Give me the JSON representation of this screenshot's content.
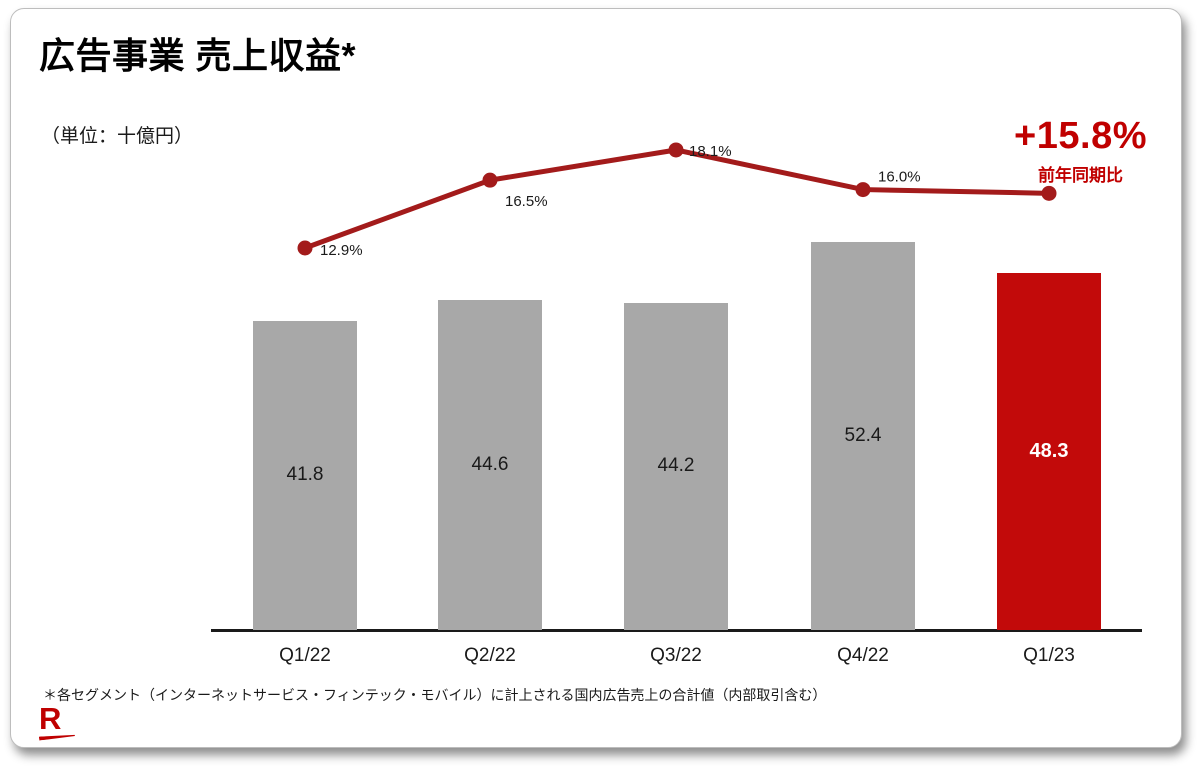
{
  "page": {
    "title": "広告事業 売上収益*",
    "unit_label": "（単位：十億円）",
    "footnote": "＊各セグメント（インターネットサービス・フィンテック・モバイル）に計上される国内広告売上の合計値（内部取引含む）",
    "logo_letter": "R"
  },
  "highlight": {
    "value": "+15.8%",
    "label": "前年同期比",
    "color": "#c00000"
  },
  "chart_data": {
    "type": "bar",
    "title": "広告事業 売上収益*",
    "unit": "十億円",
    "categories": [
      "Q1/22",
      "Q2/22",
      "Q3/22",
      "Q4/22",
      "Q1/23"
    ],
    "series": [
      {
        "name": "売上収益（十億円）",
        "type": "bar",
        "values": [
          41.8,
          44.6,
          44.2,
          52.4,
          48.3
        ]
      },
      {
        "name": "前年同期比（%）",
        "type": "line",
        "values": [
          12.9,
          16.5,
          18.1,
          16.0,
          15.8
        ]
      }
    ],
    "bar_labels": [
      "41.8",
      "44.6",
      "44.2",
      "52.4",
      "48.3"
    ],
    "line_point_labels": [
      "12.9%",
      "16.5%",
      "18.1%",
      "16.0%",
      ""
    ],
    "highlight_index": 4,
    "ylim": [
      0,
      60
    ],
    "grid": false,
    "legend": false,
    "colors": {
      "bar": "#a8a8a8",
      "highlight_bar": "#c20a0a",
      "line": "#a31b1b",
      "axis": "#1a1a1a"
    }
  }
}
